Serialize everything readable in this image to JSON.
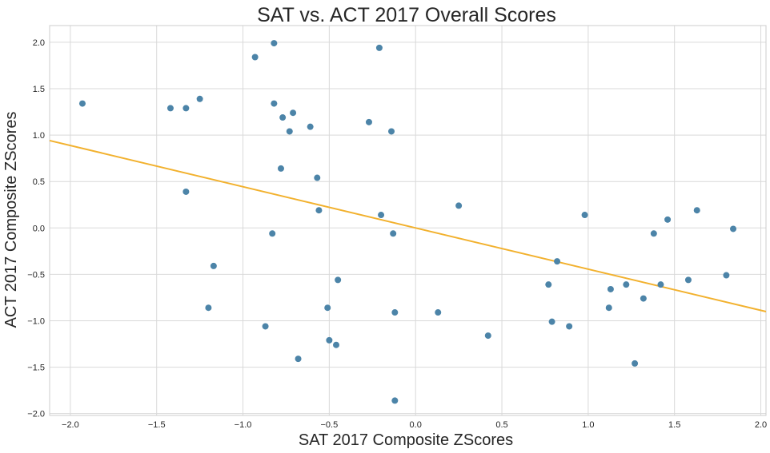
{
  "chart_data": {
    "type": "scatter",
    "title": "SAT vs. ACT 2017 Overall Scores",
    "xlabel": "SAT 2017 Composite ZScores",
    "ylabel": "ACT 2017 Composite ZScores",
    "xlim": [
      -2.12,
      2.03
    ],
    "ylim": [
      -2.02,
      2.18
    ],
    "xticks": [
      -2.0,
      -1.5,
      -1.0,
      -0.5,
      0.0,
      0.5,
      1.0,
      1.5,
      2.0
    ],
    "xtick_labels": [
      "−2.0",
      "−1.5",
      "−1.0",
      "−0.5",
      "0.0",
      "0.5",
      "1.0",
      "1.5",
      "2.0"
    ],
    "yticks": [
      2.0,
      1.5,
      1.0,
      0.5,
      0.0,
      -0.5,
      -1.0,
      -1.5,
      -2.0
    ],
    "ytick_labels": [
      "2.0",
      "1.5",
      "1.0",
      "0.5",
      "0.0",
      "−0.5",
      "−1.0",
      "−1.5",
      "−2.0"
    ],
    "grid": true,
    "colors": {
      "points": "#4c84a8",
      "line": "#f2b12e",
      "grid": "#d9d9d9",
      "frame": "#cccccc"
    },
    "series": [
      {
        "points": [
          [
            -1.93,
            1.34
          ],
          [
            -1.42,
            1.29
          ],
          [
            -1.33,
            1.29
          ],
          [
            -1.25,
            1.39
          ],
          [
            -1.33,
            0.39
          ],
          [
            -1.17,
            -0.41
          ],
          [
            -1.2,
            -0.86
          ],
          [
            -0.93,
            1.84
          ],
          [
            -0.82,
            1.99
          ],
          [
            -0.82,
            1.34
          ],
          [
            -0.77,
            1.19
          ],
          [
            -0.71,
            1.24
          ],
          [
            -0.73,
            1.04
          ],
          [
            -0.61,
            1.09
          ],
          [
            -0.78,
            0.64
          ],
          [
            -0.57,
            0.54
          ],
          [
            -0.56,
            0.19
          ],
          [
            -0.83,
            -0.06
          ],
          [
            -0.87,
            -1.06
          ],
          [
            -0.68,
            -1.41
          ],
          [
            -0.51,
            -0.86
          ],
          [
            -0.5,
            -1.21
          ],
          [
            -0.45,
            -0.56
          ],
          [
            -0.46,
            -1.26
          ],
          [
            -0.21,
            1.94
          ],
          [
            -0.27,
            1.14
          ],
          [
            -0.14,
            1.04
          ],
          [
            -0.2,
            0.14
          ],
          [
            -0.13,
            -0.06
          ],
          [
            -0.12,
            -0.91
          ],
          [
            -0.12,
            -1.86
          ],
          [
            0.25,
            0.24
          ],
          [
            0.13,
            -0.91
          ],
          [
            0.42,
            -1.16
          ],
          [
            0.77,
            -0.61
          ],
          [
            0.82,
            -0.36
          ],
          [
            0.79,
            -1.01
          ],
          [
            0.89,
            -1.06
          ],
          [
            0.98,
            0.14
          ],
          [
            1.12,
            -0.86
          ],
          [
            1.13,
            -0.66
          ],
          [
            1.22,
            -0.61
          ],
          [
            1.27,
            -1.46
          ],
          [
            1.32,
            -0.76
          ],
          [
            1.38,
            -0.06
          ],
          [
            1.42,
            -0.61
          ],
          [
            1.46,
            0.09
          ],
          [
            1.58,
            -0.56
          ],
          [
            1.63,
            0.19
          ],
          [
            1.8,
            -0.51
          ],
          [
            1.84,
            -0.01
          ]
        ]
      }
    ],
    "regression_line": {
      "slope": -0.444,
      "intercept": 0.0
    }
  }
}
